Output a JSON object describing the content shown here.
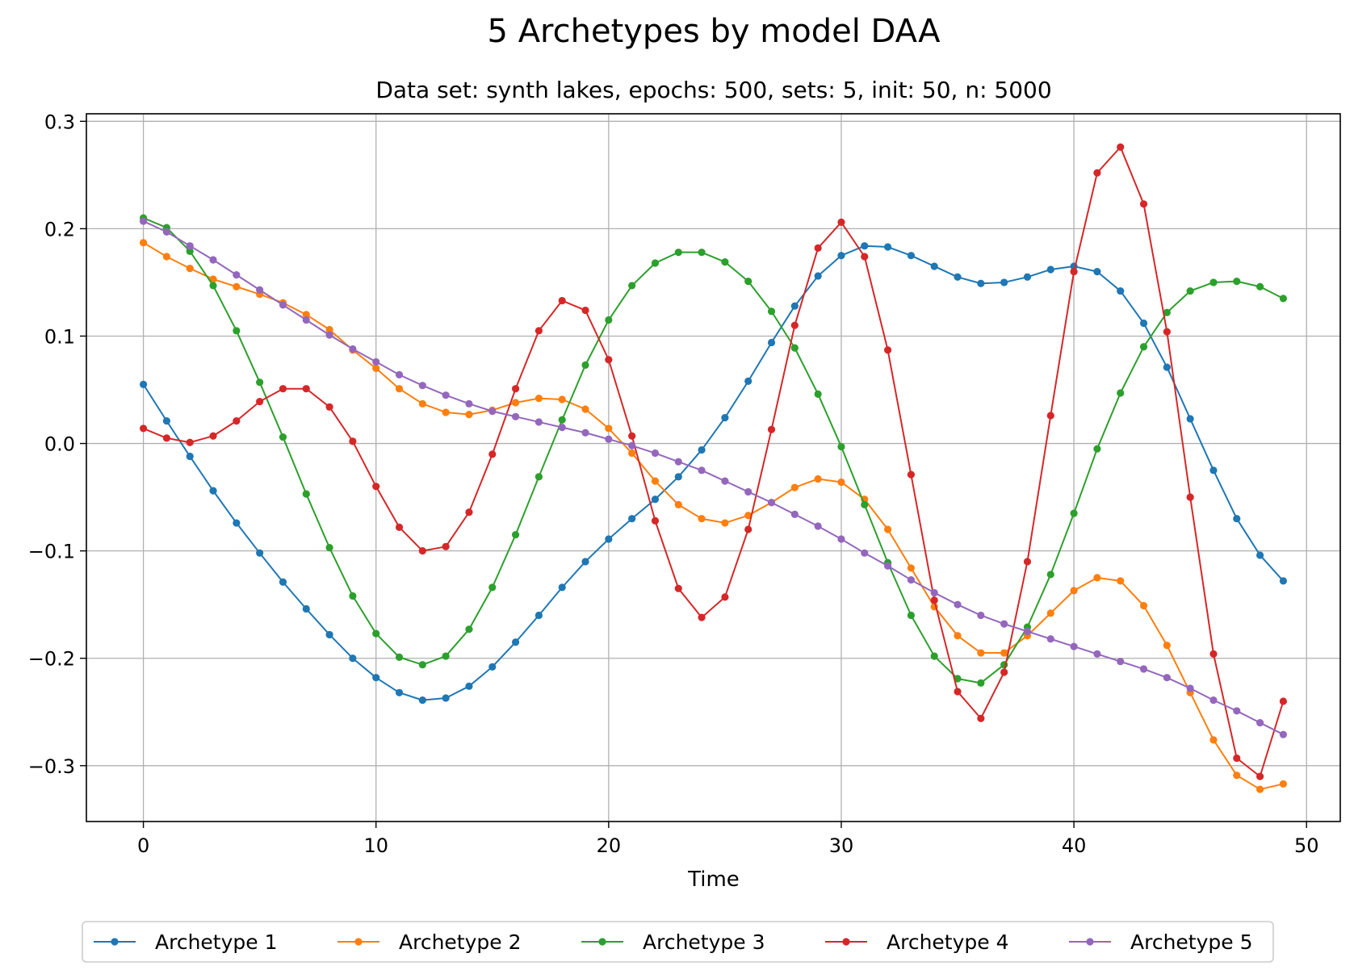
{
  "chart_data": {
    "type": "line",
    "title": "5 Archetypes by model DAA",
    "subtitle": "Data set: synth lakes, epochs: 500, sets: 5, init: 50, n: 5000",
    "xlabel": "Time",
    "ylabel": "",
    "xlim": [
      -2.45,
      51.45
    ],
    "ylim": [
      -0.352,
      0.307
    ],
    "xticks": [
      0,
      10,
      20,
      30,
      40,
      50
    ],
    "xtick_labels": [
      "0",
      "10",
      "20",
      "30",
      "40",
      "50"
    ],
    "yticks": [
      0.3,
      0.2,
      0.1,
      0.0,
      -0.1,
      -0.2,
      -0.3
    ],
    "ytick_labels": [
      "0.3",
      "0.2",
      "0.1",
      "0.0",
      "−0.1",
      "−0.2",
      "−0.3"
    ],
    "grid": true,
    "legend_position": "bottom-center",
    "x": [
      0,
      1,
      2,
      3,
      4,
      5,
      6,
      7,
      8,
      9,
      10,
      11,
      12,
      13,
      14,
      15,
      16,
      17,
      18,
      19,
      20,
      21,
      22,
      23,
      24,
      25,
      26,
      27,
      28,
      29,
      30,
      31,
      32,
      33,
      34,
      35,
      36,
      37,
      38,
      39,
      40,
      41,
      42,
      43,
      44,
      45,
      46,
      47,
      48,
      49
    ],
    "series": [
      {
        "name": "Archetype 1",
        "color": "#1f77b4",
        "values": [
          0.055,
          0.021,
          -0.012,
          -0.044,
          -0.074,
          -0.102,
          -0.129,
          -0.154,
          -0.178,
          -0.2,
          -0.218,
          -0.232,
          -0.239,
          -0.237,
          -0.226,
          -0.208,
          -0.185,
          -0.16,
          -0.134,
          -0.11,
          -0.089,
          -0.07,
          -0.052,
          -0.031,
          -0.006,
          0.024,
          0.058,
          0.094,
          0.128,
          0.156,
          0.175,
          0.184,
          0.183,
          0.175,
          0.165,
          0.155,
          0.149,
          0.15,
          0.155,
          0.162,
          0.165,
          0.16,
          0.142,
          0.112,
          0.071,
          0.023,
          -0.025,
          -0.07,
          -0.104,
          -0.128
        ]
      },
      {
        "name": "Archetype 2",
        "color": "#ff7f0e",
        "values": [
          0.187,
          0.174,
          0.163,
          0.153,
          0.146,
          0.139,
          0.131,
          0.12,
          0.106,
          0.087,
          0.07,
          0.051,
          0.037,
          0.029,
          0.027,
          0.031,
          0.038,
          0.042,
          0.041,
          0.032,
          0.014,
          -0.009,
          -0.035,
          -0.057,
          -0.07,
          -0.074,
          -0.067,
          -0.055,
          -0.041,
          -0.033,
          -0.036,
          -0.052,
          -0.08,
          -0.116,
          -0.152,
          -0.179,
          -0.195,
          -0.195,
          -0.179,
          -0.158,
          -0.137,
          -0.125,
          -0.128,
          -0.151,
          -0.188,
          -0.232,
          -0.276,
          -0.309,
          -0.322,
          -0.317
        ]
      },
      {
        "name": "Archetype 3",
        "color": "#2ca02c",
        "values": [
          0.21,
          0.201,
          0.179,
          0.147,
          0.105,
          0.057,
          0.006,
          -0.047,
          -0.097,
          -0.142,
          -0.177,
          -0.199,
          -0.206,
          -0.198,
          -0.173,
          -0.134,
          -0.085,
          -0.031,
          0.022,
          0.073,
          0.115,
          0.147,
          0.168,
          0.178,
          0.178,
          0.169,
          0.151,
          0.123,
          0.089,
          0.046,
          -0.003,
          -0.057,
          -0.111,
          -0.16,
          -0.198,
          -0.219,
          -0.223,
          -0.206,
          -0.171,
          -0.122,
          -0.065,
          -0.005,
          0.047,
          0.09,
          0.122,
          0.142,
          0.15,
          0.151,
          0.146,
          0.135
        ]
      },
      {
        "name": "Archetype 4",
        "color": "#d62728",
        "values": [
          0.014,
          0.005,
          0.001,
          0.007,
          0.021,
          0.039,
          0.051,
          0.051,
          0.034,
          0.002,
          -0.04,
          -0.078,
          -0.1,
          -0.096,
          -0.064,
          -0.01,
          0.051,
          0.105,
          0.133,
          0.124,
          0.078,
          0.007,
          -0.072,
          -0.135,
          -0.162,
          -0.143,
          -0.08,
          0.013,
          0.11,
          0.182,
          0.206,
          0.174,
          0.087,
          -0.029,
          -0.146,
          -0.231,
          -0.256,
          -0.213,
          -0.11,
          0.026,
          0.16,
          0.252,
          0.276,
          0.223,
          0.104,
          -0.05,
          -0.196,
          -0.293,
          -0.31,
          -0.24
        ]
      },
      {
        "name": "Archetype 5",
        "color": "#9467bd",
        "values": [
          0.207,
          0.197,
          0.184,
          0.171,
          0.157,
          0.143,
          0.129,
          0.115,
          0.101,
          0.088,
          0.076,
          0.064,
          0.054,
          0.045,
          0.037,
          0.03,
          0.025,
          0.02,
          0.015,
          0.01,
          0.004,
          -0.002,
          -0.009,
          -0.017,
          -0.025,
          -0.035,
          -0.045,
          -0.055,
          -0.066,
          -0.077,
          -0.089,
          -0.102,
          -0.114,
          -0.127,
          -0.139,
          -0.15,
          -0.16,
          -0.168,
          -0.175,
          -0.182,
          -0.189,
          -0.196,
          -0.203,
          -0.21,
          -0.218,
          -0.228,
          -0.239,
          -0.249,
          -0.26,
          -0.271
        ]
      }
    ]
  }
}
